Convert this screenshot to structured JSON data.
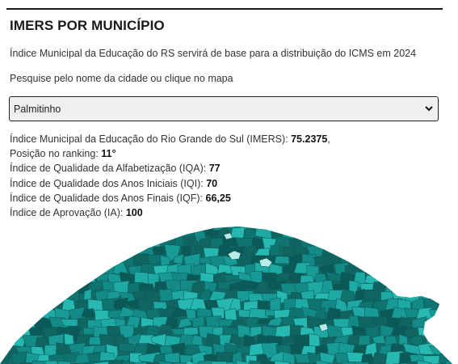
{
  "page": {
    "title": "IMERS POR MUNICÍPIO",
    "subtitle": "Índice Municipal da Educação do RS servirá de base para a distribuição do ICMS em 2024",
    "search_hint": "Pesquise pelo nome da cidade ou clique no mapa"
  },
  "select": {
    "value": "Palmitinho",
    "icon": "chevron-down-icon"
  },
  "info": [
    {
      "label": "Índice Municipal da Educação do Rio Grande do Sul (IMERS): ",
      "value": "75.2375",
      "suffix": ","
    },
    {
      "label": "Posição no ranking: ",
      "value": "11°",
      "suffix": ""
    },
    {
      "label": "Índice de Qualidade da Alfabetização (IQA): ",
      "value": "77",
      "suffix": ""
    },
    {
      "label": "Índice de Qualidade dos Anos Iniciais (IQI): ",
      "value": "70",
      "suffix": ""
    },
    {
      "label": "Índice de Qualidade dos Anos Finais (IQF): ",
      "value": "66,25",
      "suffix": ""
    },
    {
      "label": "Índice de Aprovação (IA): ",
      "value": "100",
      "suffix": ""
    }
  ],
  "map": {
    "palette": [
      "#0f7370",
      "#148a87",
      "#189b97",
      "#1fa9a4",
      "#27b8b2",
      "#0b5a57",
      "#116560"
    ],
    "highlight_color": "#b9ece6"
  }
}
